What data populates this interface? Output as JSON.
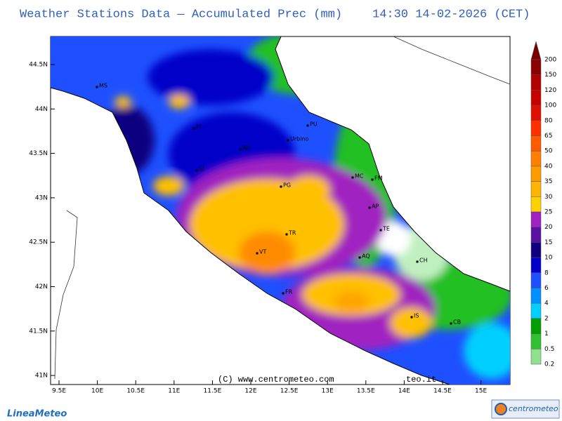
{
  "header": {
    "title": "Weather Stations Data — Accumulated Prec (mm)",
    "timestamp": "14:30 14-02-2026 (CET)"
  },
  "map": {
    "lat_labels": [
      "44.5N",
      "44N",
      "43.5N",
      "43N",
      "42.5N",
      "42N",
      "41.5N",
      "41N"
    ],
    "lon_labels": [
      "9.5E",
      "10E",
      "10.5E",
      "11E",
      "11.5E",
      "12E",
      "12.5E",
      "13E",
      "13.5E",
      "14E",
      "14.5E",
      "15E"
    ],
    "places": [
      "MS",
      "FI",
      "SI",
      "AR",
      "PU",
      "Urbino",
      "PG",
      "MC",
      "FM",
      "AP",
      "TE",
      "TR",
      "VT",
      "AQ",
      "CH",
      "FR",
      "IS",
      "CB"
    ]
  },
  "colorbar": {
    "levels": [
      {
        "value": 200,
        "color": "#8b0000"
      },
      {
        "value": 150,
        "color": "#b00000"
      },
      {
        "value": 120,
        "color": "#c80000"
      },
      {
        "value": 100,
        "color": "#e01000"
      },
      {
        "value": 80,
        "color": "#ff3000"
      },
      {
        "value": 65,
        "color": "#ff5a00"
      },
      {
        "value": 50,
        "color": "#ff8000"
      },
      {
        "value": 40,
        "color": "#ff9a00"
      },
      {
        "value": 35,
        "color": "#ffb400"
      },
      {
        "value": 30,
        "color": "#ffd000"
      },
      {
        "value": 25,
        "color": "#a020c0"
      },
      {
        "value": 20,
        "color": "#5a10a0"
      },
      {
        "value": 15,
        "color": "#100080"
      },
      {
        "value": 10,
        "color": "#0000c8"
      },
      {
        "value": 8,
        "color": "#1e50ff"
      },
      {
        "value": 6,
        "color": "#0090ff"
      },
      {
        "value": 4,
        "color": "#00d0ff"
      },
      {
        "value": 2,
        "color": "#00a000"
      },
      {
        "value": 1,
        "color": "#30c030"
      },
      {
        "value": 0.5,
        "color": "#90e090"
      },
      {
        "value": 0.2,
        "color": "#d0f4d0"
      }
    ],
    "top_color": "#7a0000"
  },
  "footer": {
    "credit": "(C) www.centrometeo.com",
    "credit_fragment": "teo.it",
    "logo_left": "LineaMeteo",
    "logo_right": "centrometeo"
  }
}
